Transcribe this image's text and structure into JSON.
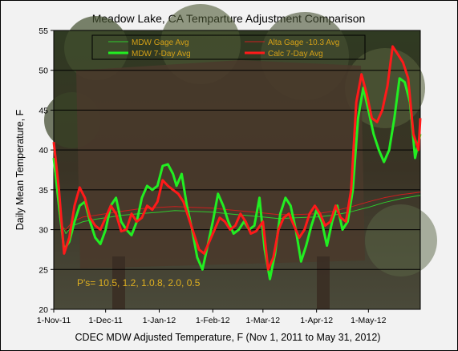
{
  "chart_data": {
    "type": "line",
    "title": "Meadow Lake, CA Temparture Adjustment Comparison",
    "xlabel": "CDEC MDW Adjusted Temperature, F (Nov 1, 2011 to May 31, 2012)",
    "ylabel": "Daily Mean Temperature, F",
    "x_start": "2011-11-01",
    "x_end": "2012-05-31",
    "xticks": [
      {
        "date": "2011-11-01",
        "label": "1-Nov-11"
      },
      {
        "date": "2011-12-01",
        "label": "1-Dec-11"
      },
      {
        "date": "2012-01-01",
        "label": "1-Jan-12"
      },
      {
        "date": "2012-02-01",
        "label": "1-Feb-12"
      },
      {
        "date": "2012-03-01",
        "label": "1-Mar-12"
      },
      {
        "date": "2012-04-01",
        "label": "1-Apr-12"
      },
      {
        "date": "2012-05-01",
        "label": "1-May-12"
      }
    ],
    "ylim": [
      20,
      55
    ],
    "yticks": [
      20,
      25,
      30,
      35,
      40,
      45,
      50,
      55
    ],
    "grid": "horizontal",
    "legend_position": "top",
    "background": "photo of Meadow Lake sign in trees",
    "annotation": "P's= 10.5, 1.2, 1.0.8, 2.0, 0.5",
    "series": [
      {
        "name": "MDW Gage Avg",
        "color": "#2ecc2e",
        "width": 1,
        "points": [
          [
            "2011-11-01",
            40
          ],
          [
            "2011-11-03",
            36
          ],
          [
            "2011-11-05",
            31
          ],
          [
            "2011-11-08",
            29.5
          ],
          [
            "2011-11-12",
            30.5
          ],
          [
            "2011-11-18",
            31
          ],
          [
            "2011-11-25",
            31.3
          ],
          [
            "2011-12-01",
            31.5
          ],
          [
            "2011-12-10",
            31.8
          ],
          [
            "2011-12-20",
            32
          ],
          [
            "2012-01-01",
            32.2
          ],
          [
            "2012-01-10",
            32.4
          ],
          [
            "2012-01-20",
            32.3
          ],
          [
            "2012-02-01",
            32.2
          ],
          [
            "2012-02-10",
            32
          ],
          [
            "2012-02-20",
            31.8
          ],
          [
            "2012-03-01",
            31.6
          ],
          [
            "2012-03-10",
            31.4
          ],
          [
            "2012-03-20",
            31.5
          ],
          [
            "2012-04-01",
            31.6
          ],
          [
            "2012-04-10",
            31.8
          ],
          [
            "2012-04-20",
            32.2
          ],
          [
            "2012-05-01",
            32.8
          ],
          [
            "2012-05-10",
            33.4
          ],
          [
            "2012-05-20",
            33.9
          ],
          [
            "2012-05-31",
            34.3
          ]
        ]
      },
      {
        "name": "Alta Gage -10.3 Avg",
        "color": "#cc1f1f",
        "width": 1,
        "points": [
          [
            "2011-11-01",
            38
          ],
          [
            "2011-11-03",
            34
          ],
          [
            "2011-11-05",
            30.5
          ],
          [
            "2011-11-08",
            30
          ],
          [
            "2011-11-12",
            31
          ],
          [
            "2011-11-18",
            31.6
          ],
          [
            "2011-11-25",
            31.8
          ],
          [
            "2011-12-01",
            32
          ],
          [
            "2011-12-10",
            32.3
          ],
          [
            "2011-12-20",
            32.6
          ],
          [
            "2012-01-01",
            32.8
          ],
          [
            "2012-01-10",
            32.9
          ],
          [
            "2012-01-20",
            32.8
          ],
          [
            "2012-02-01",
            32.7
          ],
          [
            "2012-02-10",
            32.5
          ],
          [
            "2012-02-20",
            32.3
          ],
          [
            "2012-03-01",
            32.1
          ],
          [
            "2012-03-10",
            31.9
          ],
          [
            "2012-03-20",
            31.9
          ],
          [
            "2012-04-01",
            32
          ],
          [
            "2012-04-10",
            32.3
          ],
          [
            "2012-04-20",
            32.8
          ],
          [
            "2012-05-01",
            33.5
          ],
          [
            "2012-05-10",
            34
          ],
          [
            "2012-05-20",
            34.4
          ],
          [
            "2012-05-31",
            34.7
          ]
        ]
      },
      {
        "name": "MDW 7-Day Avg",
        "color": "#22ee22",
        "width": 3,
        "points": [
          [
            "2011-11-01",
            39
          ],
          [
            "2011-11-04",
            33
          ],
          [
            "2011-11-07",
            27.5
          ],
          [
            "2011-11-10",
            28.5
          ],
          [
            "2011-11-13",
            31
          ],
          [
            "2011-11-16",
            33
          ],
          [
            "2011-11-19",
            33.5
          ],
          [
            "2011-11-22",
            31
          ],
          [
            "2011-11-25",
            29
          ],
          [
            "2011-11-28",
            28.2
          ],
          [
            "2011-12-01",
            30
          ],
          [
            "2011-12-04",
            33
          ],
          [
            "2011-12-07",
            34
          ],
          [
            "2011-12-10",
            31
          ],
          [
            "2011-12-13",
            30
          ],
          [
            "2011-12-16",
            29.3
          ],
          [
            "2011-12-19",
            31
          ],
          [
            "2011-12-22",
            34
          ],
          [
            "2011-12-25",
            35.5
          ],
          [
            "2011-12-28",
            35
          ],
          [
            "2011-12-31",
            35.5
          ],
          [
            "2012-01-03",
            38
          ],
          [
            "2012-01-06",
            38.2
          ],
          [
            "2012-01-09",
            37
          ],
          [
            "2012-01-11",
            35.5
          ],
          [
            "2012-01-14",
            37
          ],
          [
            "2012-01-17",
            33
          ],
          [
            "2012-01-20",
            30
          ],
          [
            "2012-01-23",
            26.5
          ],
          [
            "2012-01-26",
            25
          ],
          [
            "2012-01-29",
            28
          ],
          [
            "2012-02-01",
            31
          ],
          [
            "2012-02-04",
            34.5
          ],
          [
            "2012-02-07",
            33
          ],
          [
            "2012-02-10",
            31
          ],
          [
            "2012-02-13",
            29.5
          ],
          [
            "2012-02-16",
            30
          ],
          [
            "2012-02-19",
            31
          ],
          [
            "2012-02-22",
            30
          ],
          [
            "2012-02-25",
            30.5
          ],
          [
            "2012-02-28",
            34
          ],
          [
            "2012-03-02",
            27.5
          ],
          [
            "2012-03-05",
            23.8
          ],
          [
            "2012-03-08",
            27
          ],
          [
            "2012-03-11",
            32
          ],
          [
            "2012-03-14",
            34
          ],
          [
            "2012-03-17",
            33
          ],
          [
            "2012-03-20",
            30
          ],
          [
            "2012-03-23",
            26
          ],
          [
            "2012-03-26",
            28
          ],
          [
            "2012-03-29",
            30.5
          ],
          [
            "2012-04-01",
            32.5
          ],
          [
            "2012-04-04",
            31
          ],
          [
            "2012-04-07",
            28
          ],
          [
            "2012-04-10",
            31
          ],
          [
            "2012-04-13",
            33
          ],
          [
            "2012-04-16",
            30
          ],
          [
            "2012-04-19",
            31
          ],
          [
            "2012-04-22",
            35
          ],
          [
            "2012-04-25",
            44
          ],
          [
            "2012-04-28",
            47.8
          ],
          [
            "2012-05-01",
            45
          ],
          [
            "2012-05-04",
            42
          ],
          [
            "2012-05-07",
            40
          ],
          [
            "2012-05-10",
            38.5
          ],
          [
            "2012-05-13",
            40
          ],
          [
            "2012-05-16",
            44
          ],
          [
            "2012-05-19",
            49
          ],
          [
            "2012-05-22",
            48.5
          ],
          [
            "2012-05-25",
            46
          ],
          [
            "2012-05-28",
            39
          ],
          [
            "2012-05-31",
            42
          ]
        ]
      },
      {
        "name": "Calc 7-Day Avg",
        "color": "#ff1a1a",
        "width": 3,
        "points": [
          [
            "2011-11-01",
            41
          ],
          [
            "2011-11-04",
            35
          ],
          [
            "2011-11-07",
            27
          ],
          [
            "2011-11-10",
            29
          ],
          [
            "2011-11-13",
            33
          ],
          [
            "2011-11-16",
            35.3
          ],
          [
            "2011-11-19",
            34
          ],
          [
            "2011-11-22",
            31.5
          ],
          [
            "2011-11-25",
            30.5
          ],
          [
            "2011-11-28",
            30
          ],
          [
            "2011-12-01",
            31.5
          ],
          [
            "2011-12-04",
            33
          ],
          [
            "2011-12-07",
            32
          ],
          [
            "2011-12-10",
            29.8
          ],
          [
            "2011-12-13",
            30
          ],
          [
            "2011-12-16",
            32
          ],
          [
            "2011-12-19",
            31
          ],
          [
            "2011-12-22",
            31.5
          ],
          [
            "2011-12-25",
            33
          ],
          [
            "2011-12-28",
            32.5
          ],
          [
            "2011-12-31",
            33.5
          ],
          [
            "2012-01-03",
            36.2
          ],
          [
            "2012-01-06",
            35.5
          ],
          [
            "2012-01-09",
            35
          ],
          [
            "2012-01-12",
            34.5
          ],
          [
            "2012-01-15",
            33.5
          ],
          [
            "2012-01-18",
            31.5
          ],
          [
            "2012-01-21",
            29.5
          ],
          [
            "2012-01-24",
            27.5
          ],
          [
            "2012-01-27",
            27
          ],
          [
            "2012-01-30",
            28.5
          ],
          [
            "2012-02-02",
            30
          ],
          [
            "2012-02-05",
            31.5
          ],
          [
            "2012-02-08",
            31
          ],
          [
            "2012-02-11",
            30
          ],
          [
            "2012-02-14",
            30.5
          ],
          [
            "2012-02-17",
            32
          ],
          [
            "2012-02-20",
            31
          ],
          [
            "2012-02-23",
            29.5
          ],
          [
            "2012-02-26",
            29.8
          ],
          [
            "2012-03-01",
            31
          ],
          [
            "2012-03-04",
            25
          ],
          [
            "2012-03-07",
            26.5
          ],
          [
            "2012-03-10",
            30
          ],
          [
            "2012-03-13",
            31.5
          ],
          [
            "2012-03-16",
            32
          ],
          [
            "2012-03-19",
            30.5
          ],
          [
            "2012-03-22",
            29
          ],
          [
            "2012-03-25",
            30
          ],
          [
            "2012-03-28",
            32
          ],
          [
            "2012-03-31",
            33
          ],
          [
            "2012-04-03",
            32
          ],
          [
            "2012-04-06",
            30.5
          ],
          [
            "2012-04-09",
            31
          ],
          [
            "2012-04-12",
            33
          ],
          [
            "2012-04-15",
            31.5
          ],
          [
            "2012-04-18",
            31
          ],
          [
            "2012-04-21",
            35
          ],
          [
            "2012-04-24",
            46
          ],
          [
            "2012-04-27",
            49.5
          ],
          [
            "2012-04-30",
            47
          ],
          [
            "2012-05-03",
            44
          ],
          [
            "2012-05-06",
            43.5
          ],
          [
            "2012-05-09",
            45
          ],
          [
            "2012-05-12",
            48
          ],
          [
            "2012-05-15",
            53
          ],
          [
            "2012-05-18",
            52
          ],
          [
            "2012-05-21",
            51
          ],
          [
            "2012-05-24",
            49
          ],
          [
            "2012-05-27",
            42
          ],
          [
            "2012-05-30",
            40
          ],
          [
            "2012-05-31",
            44
          ]
        ]
      }
    ]
  }
}
